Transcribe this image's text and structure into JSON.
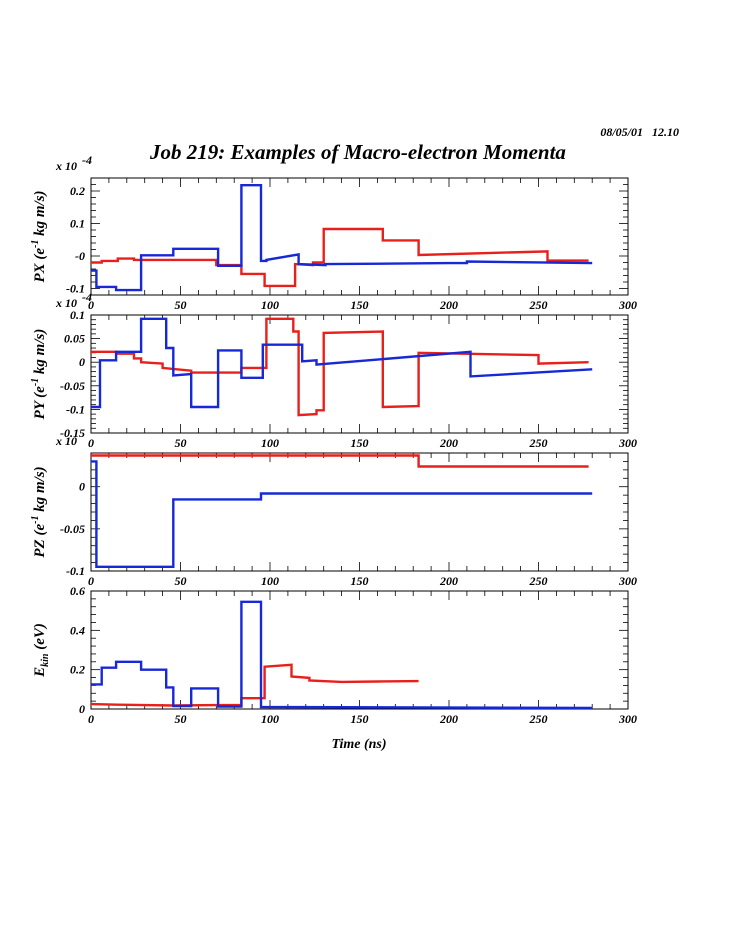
{
  "header": {
    "date_stamp": "08/05/01   12.10",
    "title": "Job 219: Examples of Macro-electron Momenta"
  },
  "colors": {
    "series_red": "#e8201c",
    "series_blue": "#1728d6",
    "frame": "#000000"
  },
  "chart_data": [
    {
      "type": "line",
      "ylabel": "PX (e-1 kg m/s)",
      "ylabel_main": "PX (e",
      "ylabel_sup": "-1",
      "ylabel_tail": " kg m/s)",
      "exponent_label": "x 10",
      "exponent_power": "-4",
      "xlim": [
        0,
        300
      ],
      "ylim": [
        -0.12,
        0.24
      ],
      "xticks": [
        0,
        50,
        100,
        150,
        200,
        250,
        300
      ],
      "yticks": [
        {
          "v": 0.2,
          "label": "0.2"
        },
        {
          "v": 0.1,
          "label": "0.1"
        },
        {
          "v": 0,
          "label": "-0"
        },
        {
          "v": -0.1,
          "label": "-0.1"
        }
      ],
      "series": [
        {
          "color": "red",
          "points": [
            [
              0,
              -0.02
            ],
            [
              6,
              -0.02
            ],
            [
              6,
              -0.015
            ],
            [
              15,
              -0.015
            ],
            [
              15,
              -0.008
            ],
            [
              24,
              -0.008
            ],
            [
              24,
              -0.012
            ],
            [
              70,
              -0.012
            ],
            [
              70,
              -0.028
            ],
            [
              84,
              -0.028
            ],
            [
              84,
              -0.055
            ],
            [
              97,
              -0.055
            ],
            [
              97,
              -0.092
            ],
            [
              114,
              -0.092
            ],
            [
              114,
              -0.025
            ],
            [
              124,
              -0.028
            ],
            [
              124,
              -0.02
            ],
            [
              130,
              -0.02
            ],
            [
              130,
              0.083
            ],
            [
              163,
              0.083
            ],
            [
              163,
              0.048
            ],
            [
              183,
              0.048
            ],
            [
              183,
              0.003
            ],
            [
              255,
              0.014
            ],
            [
              255,
              -0.014
            ],
            [
              278,
              -0.014
            ]
          ]
        },
        {
          "color": "blue",
          "points": [
            [
              0,
              -0.045
            ],
            [
              3,
              -0.045
            ],
            [
              3,
              -0.095
            ],
            [
              14,
              -0.095
            ],
            [
              14,
              -0.105
            ],
            [
              28,
              -0.105
            ],
            [
              28,
              0.002
            ],
            [
              46,
              0.002
            ],
            [
              46,
              0.022
            ],
            [
              71,
              0.022
            ],
            [
              71,
              -0.03
            ],
            [
              84,
              -0.03
            ],
            [
              84,
              0.218
            ],
            [
              95,
              0.218
            ],
            [
              95,
              -0.015
            ],
            [
              98,
              -0.015
            ],
            [
              98,
              -0.012
            ],
            [
              116,
              0.005
            ],
            [
              116,
              -0.025
            ],
            [
              131,
              -0.028
            ],
            [
              131,
              -0.025
            ],
            [
              200,
              -0.022
            ],
            [
              210,
              -0.022
            ],
            [
              210,
              -0.017
            ],
            [
              280,
              -0.022
            ]
          ]
        }
      ]
    },
    {
      "type": "line",
      "ylabel": "PY (e-1 kg m/s)",
      "ylabel_main": "PY (e",
      "ylabel_sup": "-1",
      "ylabel_tail": " kg m/s)",
      "exponent_label": "x 10",
      "exponent_power": "-4",
      "xlim": [
        0,
        300
      ],
      "ylim": [
        -0.15,
        0.1
      ],
      "xticks": [
        0,
        50,
        100,
        150,
        200,
        250,
        300
      ],
      "yticks": [
        {
          "v": 0.1,
          "label": "0.1"
        },
        {
          "v": 0.05,
          "label": "0.05"
        },
        {
          "v": 0,
          "label": "0"
        },
        {
          "v": -0.05,
          "label": "-0.05"
        },
        {
          "v": -0.1,
          "label": "-0.1"
        },
        {
          "v": -0.15,
          "label": "-0.15"
        }
      ],
      "series": [
        {
          "color": "red",
          "points": [
            [
              0,
              0.022
            ],
            [
              14,
              0.022
            ],
            [
              14,
              0.018
            ],
            [
              24,
              0.018
            ],
            [
              24,
              0.008
            ],
            [
              28,
              0.008
            ],
            [
              28,
              0
            ],
            [
              40,
              -0.003
            ],
            [
              40,
              -0.012
            ],
            [
              56,
              -0.018
            ],
            [
              56,
              -0.022
            ],
            [
              84,
              -0.022
            ],
            [
              84,
              -0.012
            ],
            [
              98,
              -0.012
            ],
            [
              98,
              0.092
            ],
            [
              113,
              0.092
            ],
            [
              113,
              0.065
            ],
            [
              116,
              0.065
            ],
            [
              116,
              -0.112
            ],
            [
              126,
              -0.11
            ],
            [
              126,
              -0.102
            ],
            [
              130,
              -0.102
            ],
            [
              130,
              0.062
            ],
            [
              163,
              0.065
            ],
            [
              163,
              -0.095
            ],
            [
              183,
              -0.093
            ],
            [
              183,
              0.02
            ],
            [
              250,
              0.015
            ],
            [
              250,
              -0.003
            ],
            [
              278,
              0
            ]
          ]
        },
        {
          "color": "blue",
          "points": [
            [
              0,
              -0.095
            ],
            [
              5,
              -0.095
            ],
            [
              5,
              0.004
            ],
            [
              14,
              0.004
            ],
            [
              14,
              0.022
            ],
            [
              28,
              0.022
            ],
            [
              28,
              0.092
            ],
            [
              42,
              0.092
            ],
            [
              42,
              0.03
            ],
            [
              46,
              0.03
            ],
            [
              46,
              -0.028
            ],
            [
              56,
              -0.025
            ],
            [
              56,
              -0.095
            ],
            [
              71,
              -0.095
            ],
            [
              71,
              0.025
            ],
            [
              84,
              0.025
            ],
            [
              84,
              -0.033
            ],
            [
              96,
              -0.033
            ],
            [
              96,
              0.037
            ],
            [
              118,
              0.037
            ],
            [
              118,
              0.002
            ],
            [
              126,
              0.004
            ],
            [
              126,
              -0.005
            ],
            [
              212,
              0.022
            ],
            [
              212,
              -0.03
            ],
            [
              280,
              -0.015
            ]
          ]
        }
      ]
    },
    {
      "type": "line",
      "ylabel": "PZ (e-1 kg m/s)",
      "ylabel_main": "PZ (e",
      "ylabel_sup": "-1",
      "ylabel_tail": " kg m/s)",
      "exponent_label": "x 10",
      "exponent_power": "",
      "xlim": [
        0,
        300
      ],
      "ylim": [
        -0.1,
        0.04
      ],
      "xticks": [
        0,
        50,
        100,
        150,
        200,
        250,
        300
      ],
      "yticks": [
        {
          "v": 0,
          "label": "0"
        },
        {
          "v": -0.05,
          "label": "-0.05"
        },
        {
          "v": -0.1,
          "label": "-0.1"
        }
      ],
      "series": [
        {
          "color": "red",
          "points": [
            [
              0,
              0.037
            ],
            [
              183,
              0.037
            ],
            [
              183,
              0.024
            ],
            [
              278,
              0.024
            ]
          ]
        },
        {
          "color": "blue",
          "points": [
            [
              0,
              0.03
            ],
            [
              3,
              0.03
            ],
            [
              3,
              -0.095
            ],
            [
              46,
              -0.095
            ],
            [
              46,
              -0.015
            ],
            [
              95,
              -0.015
            ],
            [
              95,
              -0.008
            ],
            [
              280,
              -0.008
            ]
          ]
        }
      ]
    },
    {
      "type": "line",
      "ylabel": "Ekin (eV)",
      "ylabel_main": "E",
      "ylabel_sub": "kin",
      "ylabel_tail": " (eV)",
      "xlabel": "Time (ns)",
      "xlim": [
        0,
        300
      ],
      "ylim": [
        0,
        0.6
      ],
      "xticks": [
        0,
        50,
        100,
        150,
        200,
        250,
        300
      ],
      "yticks": [
        {
          "v": 0.6,
          "label": "0.6"
        },
        {
          "v": 0.4,
          "label": "0.4"
        },
        {
          "v": 0.2,
          "label": "0.2"
        },
        {
          "v": 0,
          "label": "0"
        }
      ],
      "series": [
        {
          "color": "red",
          "points": [
            [
              0,
              0.025
            ],
            [
              15,
              0.022
            ],
            [
              46,
              0.018
            ],
            [
              70,
              0.02
            ],
            [
              84,
              0.02
            ],
            [
              84,
              0.055
            ],
            [
              97,
              0.055
            ],
            [
              97,
              0.215
            ],
            [
              112,
              0.225
            ],
            [
              112,
              0.165
            ],
            [
              122,
              0.158
            ],
            [
              122,
              0.145
            ],
            [
              140,
              0.138
            ],
            [
              160,
              0.14
            ],
            [
              183,
              0.142
            ]
          ]
        },
        {
          "color": "blue",
          "points": [
            [
              0,
              0.125
            ],
            [
              6,
              0.125
            ],
            [
              6,
              0.21
            ],
            [
              14,
              0.21
            ],
            [
              14,
              0.24
            ],
            [
              28,
              0.24
            ],
            [
              28,
              0.2
            ],
            [
              42,
              0.2
            ],
            [
              42,
              0.11
            ],
            [
              46,
              0.11
            ],
            [
              46,
              0.015
            ],
            [
              56,
              0.015
            ],
            [
              56,
              0.105
            ],
            [
              71,
              0.105
            ],
            [
              71,
              0.012
            ],
            [
              84,
              0.012
            ],
            [
              84,
              0.545
            ],
            [
              95,
              0.545
            ],
            [
              95,
              0.01
            ],
            [
              280,
              0.005
            ]
          ]
        }
      ]
    }
  ]
}
